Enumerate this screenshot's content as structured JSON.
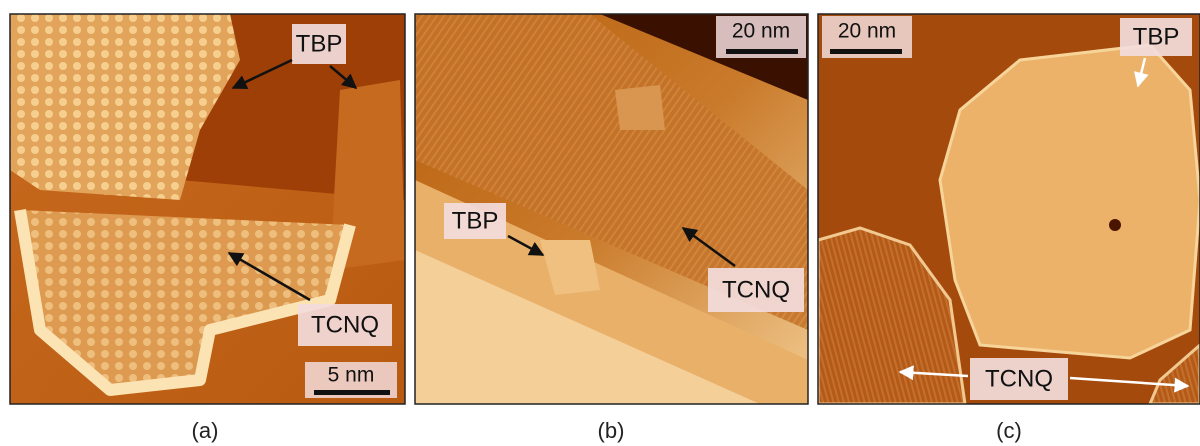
{
  "panels": [
    {
      "caption": "(a)",
      "labels": [
        "TBP",
        "TCNQ"
      ],
      "scale_bar": "5 nm"
    },
    {
      "caption": "(b)",
      "labels": [
        "TBP",
        "TCNQ"
      ],
      "scale_bar": "20 nm"
    },
    {
      "caption": "(c)",
      "labels": [
        "TBP",
        "TCNQ"
      ],
      "scale_bar": "20 nm"
    }
  ]
}
